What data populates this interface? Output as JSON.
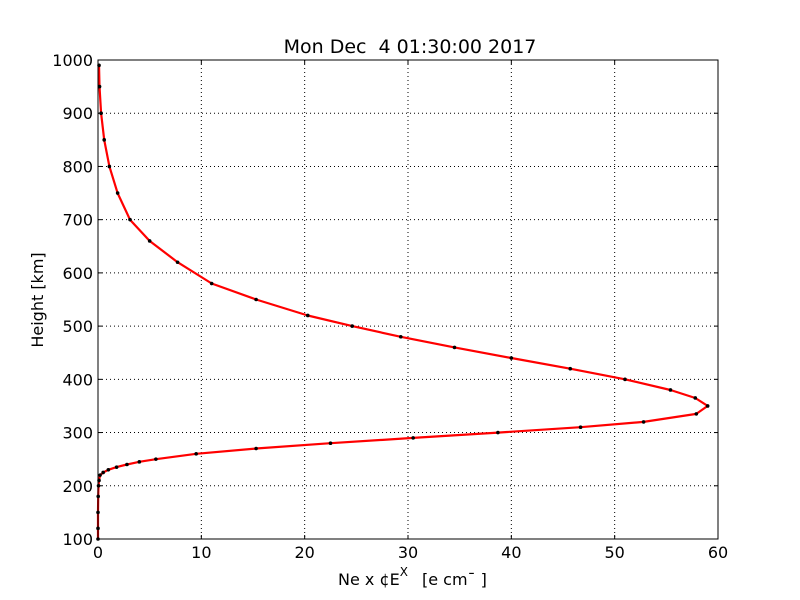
{
  "chart_data": {
    "type": "line",
    "title": "Mon Dec  4 01:30:00 2017",
    "xlabel": "Ne x ¢E",
    "xlabel_sup": "X",
    "xlabel_units": "[e cm¯ ]",
    "ylabel": "Height [km]",
    "xlim": [
      0,
      60
    ],
    "ylim": [
      100,
      1000
    ],
    "xticks": [
      0,
      10,
      20,
      30,
      40,
      50,
      60
    ],
    "yticks": [
      100,
      200,
      300,
      400,
      500,
      600,
      700,
      800,
      900,
      1000
    ],
    "grid": true,
    "line_color": "#ff0000",
    "marker_color": "#000000",
    "series": [
      {
        "height": [
          990,
          950,
          900,
          850,
          800,
          750,
          700,
          660,
          620,
          580,
          550,
          520,
          500,
          480,
          460,
          440,
          420,
          400,
          380,
          365,
          350,
          335,
          320,
          310,
          300,
          290,
          280,
          270,
          260,
          250,
          245,
          240,
          235,
          230,
          225,
          220,
          210,
          200,
          180,
          150,
          120,
          100
        ],
        "density": [
          0.1,
          0.15,
          0.3,
          0.6,
          1.1,
          1.9,
          3.1,
          5.0,
          7.7,
          11.0,
          15.3,
          20.3,
          24.6,
          29.3,
          34.5,
          40.0,
          45.7,
          51.0,
          55.4,
          57.8,
          59.0,
          57.9,
          52.8,
          46.7,
          38.7,
          30.5,
          22.5,
          15.3,
          9.5,
          5.6,
          4.0,
          2.8,
          1.8,
          1.0,
          0.5,
          0.2,
          0.1,
          0.05,
          0.02,
          0.0,
          0.0,
          0.0
        ]
      }
    ]
  }
}
